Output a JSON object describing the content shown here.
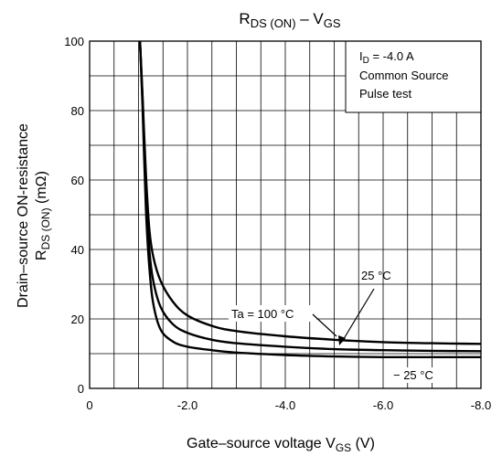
{
  "chart_data": {
    "type": "line",
    "title": {
      "main": "R",
      "sub1": "DS (ON)",
      "sep": " – V",
      "sub2": "GS"
    },
    "xlabel": {
      "pre": "Gate–source voltage   V",
      "sub": "GS",
      "post": "   (V)"
    },
    "ylabel": {
      "line1": "Drain–source ON-resistance",
      "line2_main": "R",
      "line2_sub": "DS (ON)",
      "line2_post": "   (mΩ)"
    },
    "xlim": [
      0,
      -8.0
    ],
    "ylim": [
      0,
      100
    ],
    "x_ticks": [
      {
        "value": 0,
        "label": "0"
      },
      {
        "value": -2.0,
        "label": "-2.0"
      },
      {
        "value": -4.0,
        "label": "-4.0"
      },
      {
        "value": -6.0,
        "label": "-6.0"
      },
      {
        "value": -8.0,
        "label": "-8.0"
      }
    ],
    "y_ticks": [
      {
        "value": 0,
        "label": "0"
      },
      {
        "value": 20,
        "label": "20"
      },
      {
        "value": 40,
        "label": "40"
      },
      {
        "value": 60,
        "label": "60"
      },
      {
        "value": 80,
        "label": "80"
      },
      {
        "value": 100,
        "label": "100"
      }
    ],
    "x_minor_step": 0.5,
    "y_minor_step": 10,
    "grid": true,
    "conditions_box": {
      "id_main": "I",
      "id_sub": "D",
      "id_value": " = -4.0 A",
      "line2": "Common Source",
      "line3": "Pulse test"
    },
    "series": [
      {
        "name": "Ta = 100 °C",
        "x": [
          -1.03,
          -1.08,
          -1.15,
          -1.22,
          -1.3,
          -1.45,
          -1.7,
          -2.0,
          -2.5,
          -3.0,
          -4.0,
          -5.0,
          -6.0,
          -7.0,
          -8.0
        ],
        "y": [
          100,
          85,
          62,
          46,
          38,
          31,
          25,
          21,
          18,
          16.5,
          15,
          14,
          13.3,
          13,
          12.8
        ]
      },
      {
        "name": "25 °C",
        "x": [
          -1.03,
          -1.08,
          -1.15,
          -1.22,
          -1.3,
          -1.45,
          -1.7,
          -2.0,
          -2.5,
          -3.0,
          -4.0,
          -5.0,
          -6.0,
          -7.0,
          -8.0
        ],
        "y": [
          100,
          84,
          58,
          40,
          31,
          23.5,
          18.5,
          16,
          14,
          13,
          12,
          11.3,
          11,
          10.8,
          10.7
        ]
      },
      {
        "name": "− 25 °C",
        "x": [
          -1.03,
          -1.08,
          -1.15,
          -1.22,
          -1.3,
          -1.45,
          -1.7,
          -2.0,
          -2.5,
          -3.0,
          -4.0,
          -5.0,
          -6.0,
          -7.0,
          -8.0
        ],
        "y": [
          100,
          82,
          52,
          35,
          24.5,
          17,
          13.5,
          12,
          11,
          10.3,
          9.6,
          9.2,
          9.0,
          9.0,
          9.0
        ]
      }
    ],
    "annotations": [
      {
        "text": "Ta = 100 °C",
        "series": 0
      },
      {
        "text": "25 °C",
        "series": 1
      },
      {
        "text": "− 25 °C",
        "series": 2
      }
    ]
  }
}
